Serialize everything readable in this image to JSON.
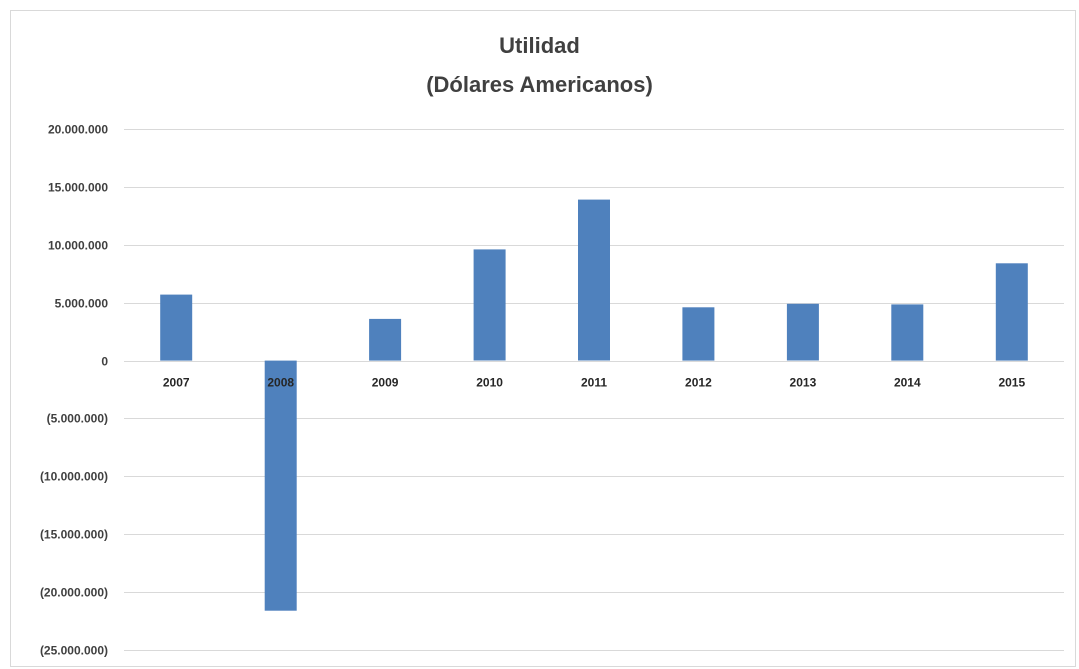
{
  "chart_data": {
    "type": "bar",
    "title": "Utilidad",
    "subtitle": "(Dólares Americanos)",
    "xlabel": "",
    "ylabel": "",
    "categories": [
      "2007",
      "2008",
      "2009",
      "2010",
      "2011",
      "2012",
      "2013",
      "2014",
      "2015"
    ],
    "values": [
      5700000,
      -21600000,
      3600000,
      9600000,
      13900000,
      4600000,
      4900000,
      4850000,
      8400000
    ],
    "ylim": [
      -25000000,
      20000000
    ],
    "yticks": [
      20000000,
      15000000,
      10000000,
      5000000,
      0,
      -5000000,
      -10000000,
      -15000000,
      -20000000,
      -25000000
    ],
    "ytick_labels": [
      "20.000.000",
      "15.000.000",
      "10.000.000",
      "5.000.000",
      "0",
      "(5.000.000)",
      "(10.000.000)",
      "(15.000.000)",
      "(20.000.000)",
      "(25.000.000)"
    ],
    "grid": true,
    "legend": "none",
    "colors": {
      "bar": "#4f81bd",
      "grid": "#d9d9d9",
      "text": "#404040"
    }
  }
}
